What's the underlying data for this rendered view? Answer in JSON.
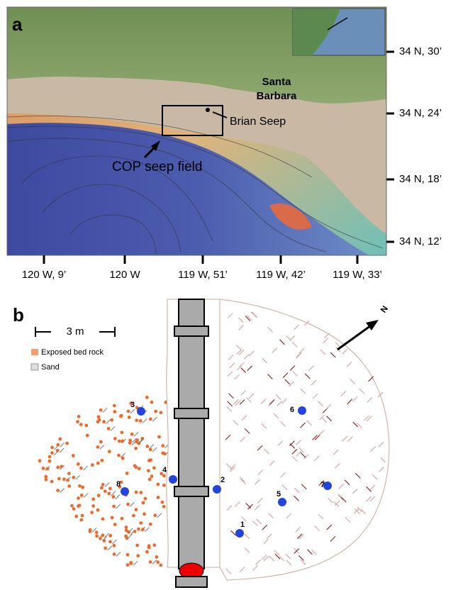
{
  "panel_a": {
    "label": "a",
    "city_lines": [
      "Santa",
      "Barbara"
    ],
    "seep_label": "Brian Seep",
    "field_label": "COP seep field",
    "lat_labels": [
      "34 N, 30’",
      "34 N, 24’",
      "34 N, 18’",
      "34 N, 12’"
    ],
    "lon_labels": [
      "120 W, 9’",
      "120 W",
      "119 W, 51’",
      "119 W, 42’",
      "119 W, 33’"
    ]
  },
  "panel_b": {
    "label": "b",
    "scale_label": "3 m",
    "legend": [
      "Exposed bed rock",
      "Sand"
    ],
    "north": "N",
    "sites": [
      "1",
      "2",
      "3",
      "4",
      "5",
      "6",
      "7",
      "8"
    ]
  }
}
